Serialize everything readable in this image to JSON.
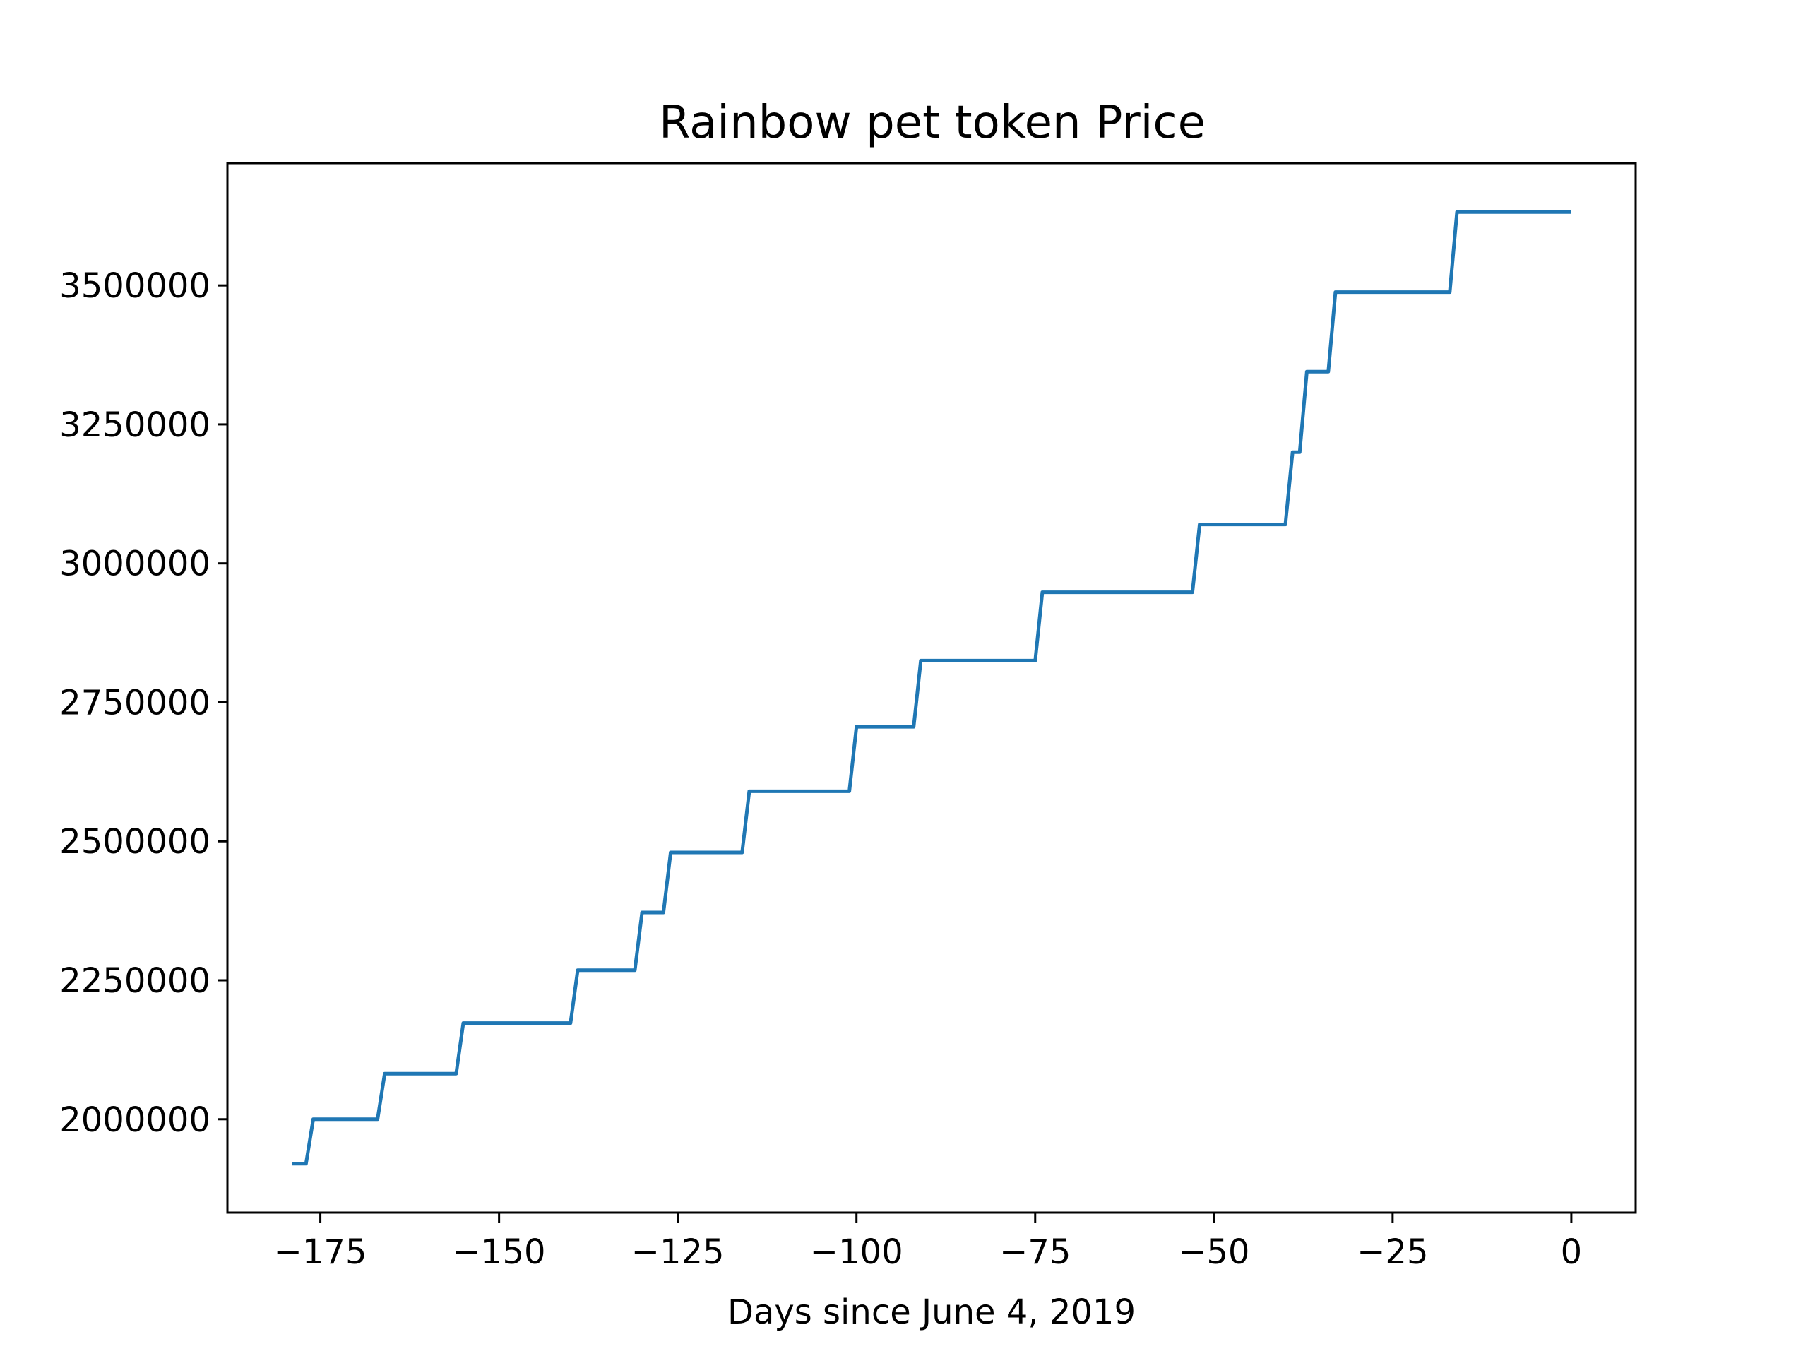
{
  "chart_data": {
    "type": "line",
    "title": "Rainbow pet token Price",
    "xlabel": "Days since June 4, 2019",
    "ylabel": "",
    "xlim": [
      -188,
      9
    ],
    "ylim": [
      1832000,
      3720000
    ],
    "xticks": [
      -175,
      -150,
      -125,
      -100,
      -75,
      -50,
      -25,
      0
    ],
    "xtick_labels": [
      "−175",
      "−150",
      "−125",
      "−100",
      "−75",
      "−50",
      "−25",
      "0"
    ],
    "yticks": [
      2000000,
      2250000,
      2500000,
      2750000,
      3000000,
      3250000,
      3500000
    ],
    "ytick_labels": [
      "2000000",
      "2250000",
      "2500000",
      "2750000",
      "3000000",
      "3250000",
      "3500000"
    ],
    "grid": false,
    "legend": "none",
    "series": [
      {
        "color": "#1f77b4",
        "x": [
          -179,
          -177,
          -176,
          -167,
          -166,
          -156,
          -155,
          -140,
          -139,
          -131,
          -130,
          -127,
          -126,
          -116,
          -115,
          -101,
          -100,
          -92,
          -91,
          -75,
          -74,
          -53,
          -52,
          -40,
          -39,
          -38,
          -37,
          -34,
          -33,
          -17,
          -16,
          0
        ],
        "y": [
          1920000,
          1920000,
          2000000,
          2000000,
          2082000,
          2082000,
          2173000,
          2173000,
          2268000,
          2268000,
          2372000,
          2372000,
          2480000,
          2480000,
          2590000,
          2590000,
          2706000,
          2706000,
          2825000,
          2825000,
          2948000,
          2948000,
          3070000,
          3070000,
          3200000,
          3200000,
          3345000,
          3345000,
          3488000,
          3488000,
          3632000,
          3632000
        ]
      }
    ]
  }
}
